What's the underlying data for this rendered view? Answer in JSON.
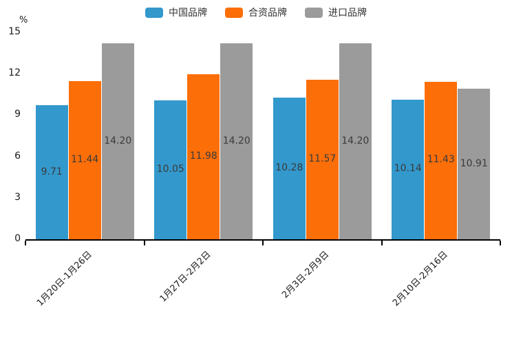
{
  "chart_data": {
    "type": "bar",
    "title": "",
    "unit_label": "%",
    "categories": [
      "1月20日-1月26日",
      "1月27日-2月2日",
      "2月3日-2月9日",
      "2月10日-2月16日"
    ],
    "series": [
      {
        "name": "中国品牌",
        "color": "#3398CC",
        "values": [
          9.71,
          10.05,
          10.28,
          10.14
        ]
      },
      {
        "name": "合资品牌",
        "color": "#FC6E08",
        "values": [
          11.44,
          11.98,
          11.57,
          11.43
        ]
      },
      {
        "name": "进口品牌",
        "color": "#9B9B9B",
        "values": [
          14.2,
          14.2,
          14.2,
          10.91
        ]
      }
    ],
    "ylim": [
      0,
      15
    ],
    "yticks": [
      0,
      3,
      6,
      9,
      12,
      15
    ],
    "value_label_decimals": 2,
    "grid": "off",
    "legend_position": "top-center",
    "axis_color": "#000000",
    "value_label_color": "#3a3a3a"
  }
}
